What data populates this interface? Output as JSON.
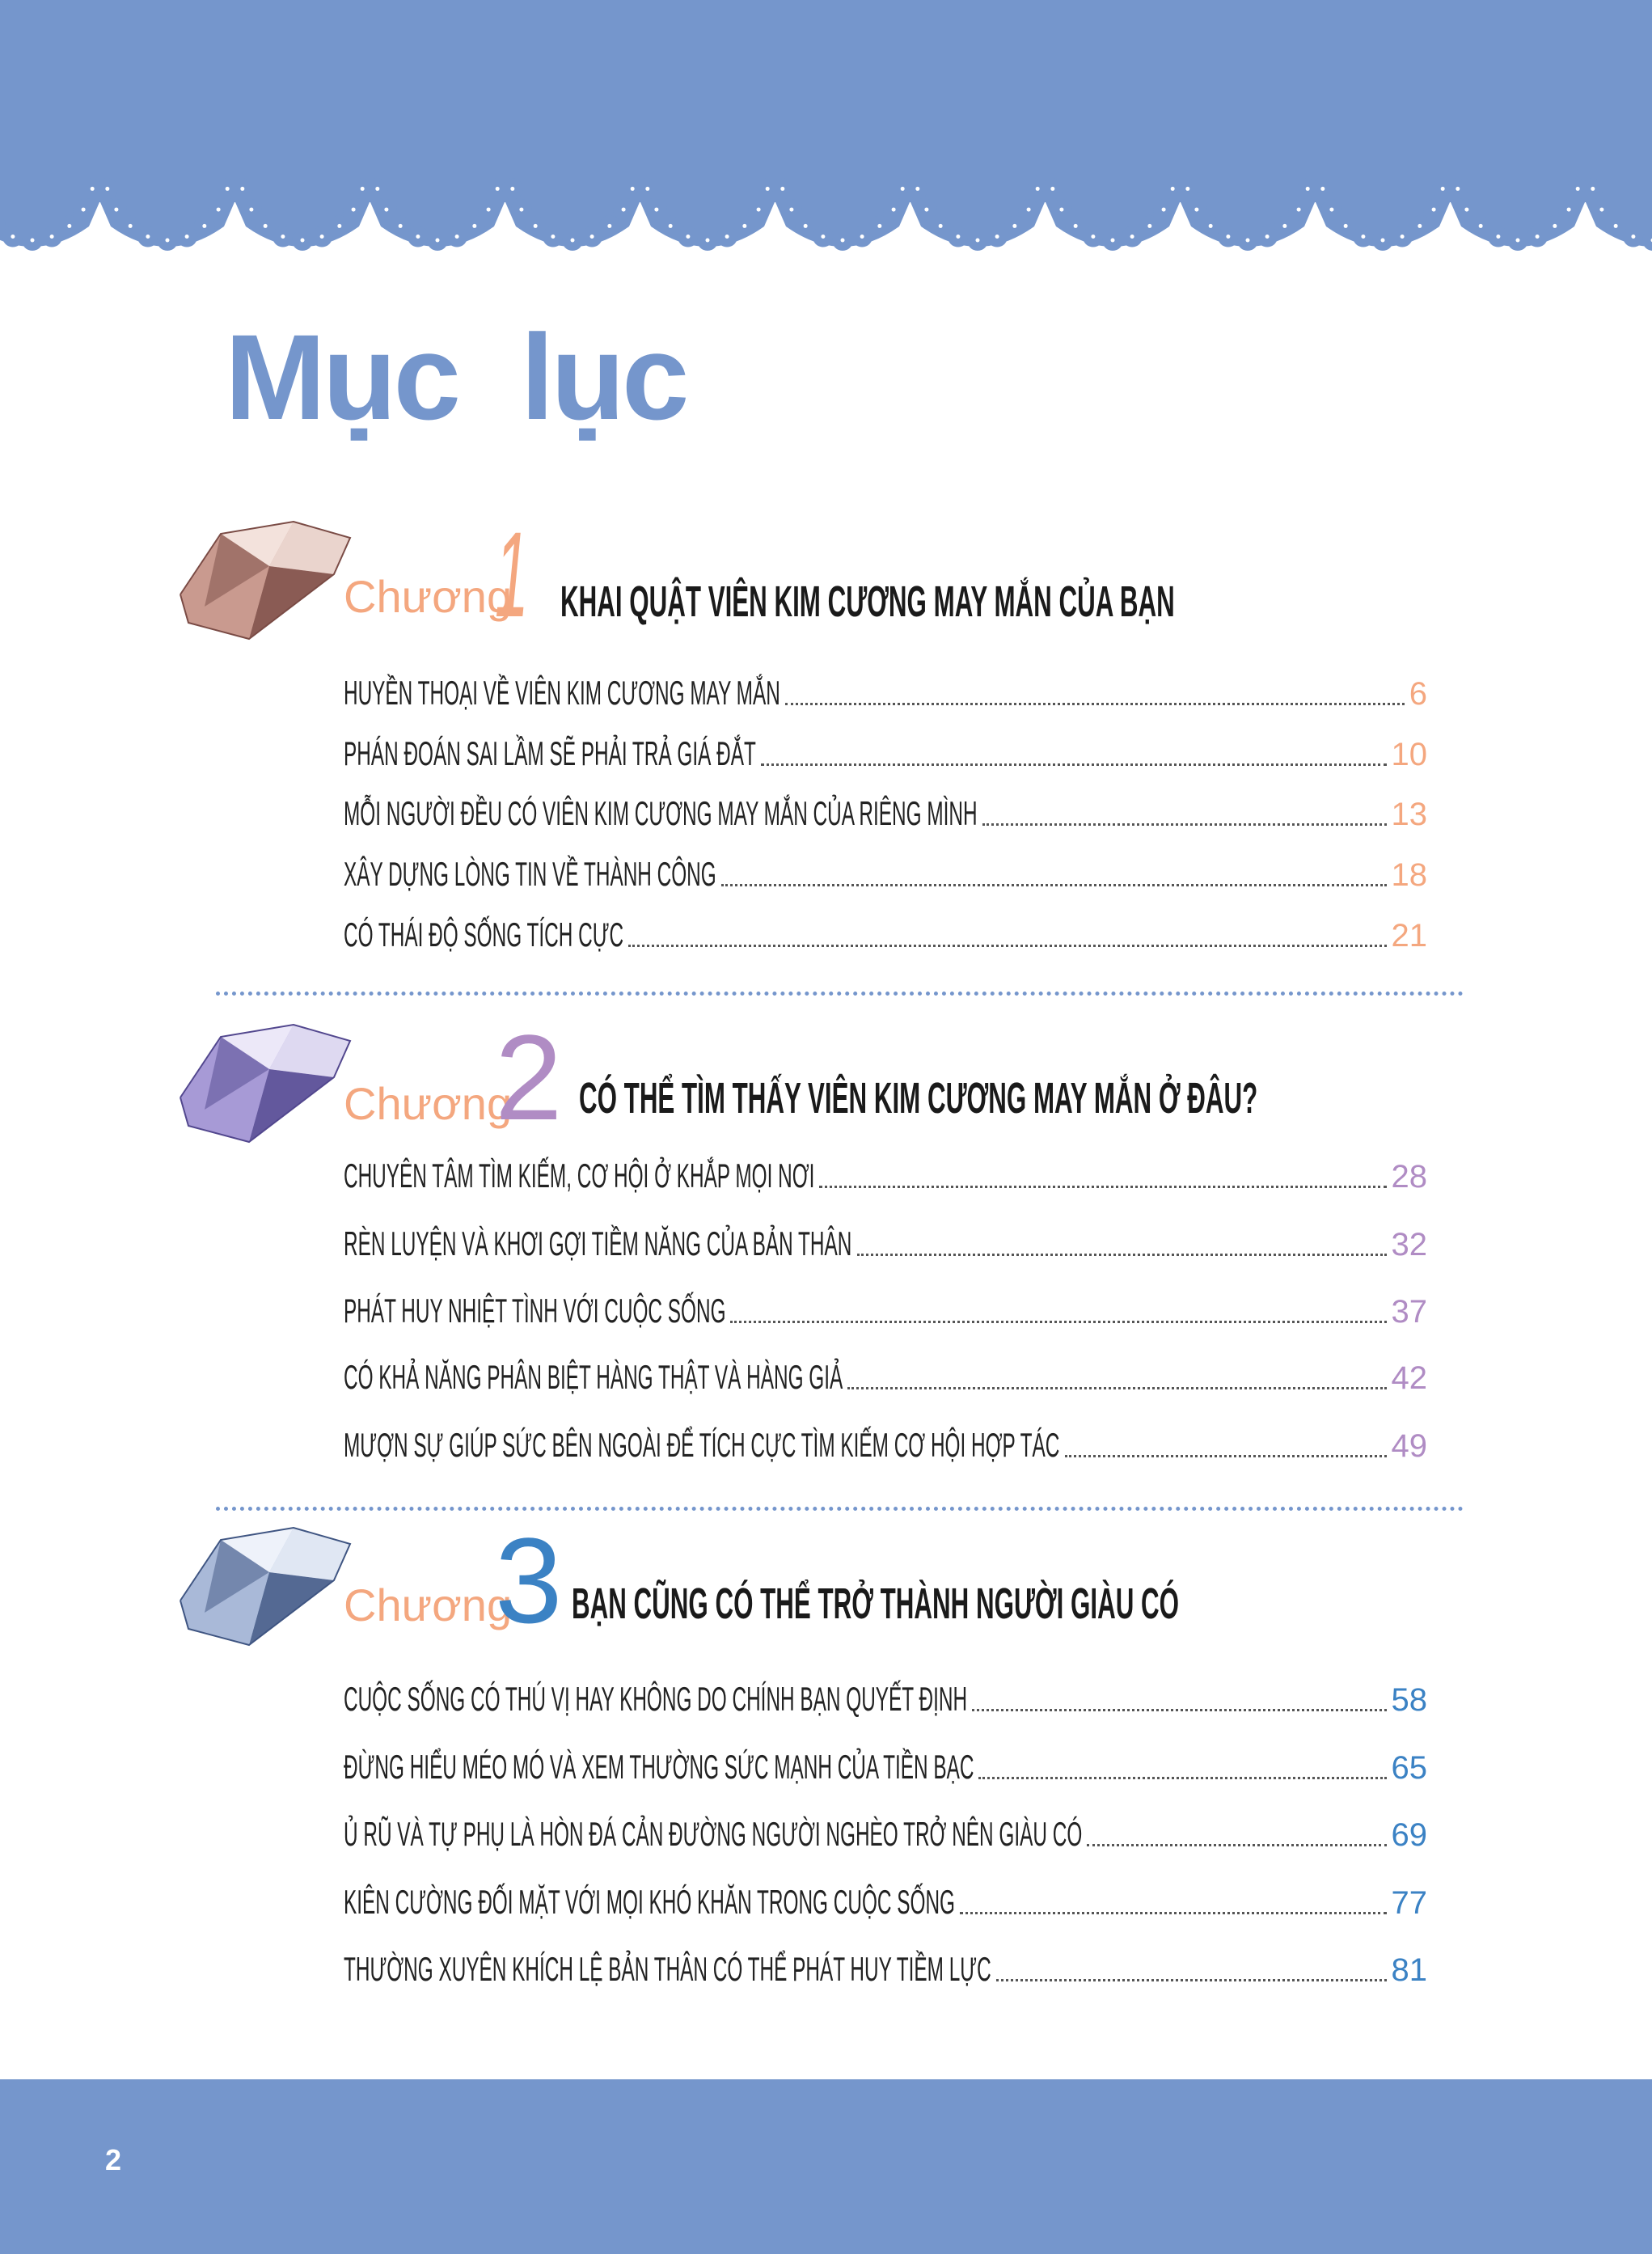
{
  "title": "Mục lục",
  "colors": {
    "band": "#7596cc",
    "chuong": "#f4a77f",
    "ch1": "#f4a77f",
    "ch2": "#b08cc4",
    "ch3": "#3b82c4"
  },
  "chapters": [
    {
      "word": "Chương",
      "number": "1",
      "title": "KHAI QUẬT VIÊN KIM CƯƠNG MAY MẮN CỦA BẠN",
      "gem": "pink-diamond",
      "items": [
        {
          "label": "HUYỀN THOẠI VỀ VIÊN KIM CƯƠNG MAY MẮN",
          "page": "6"
        },
        {
          "label": "PHÁN ĐOÁN SAI LẦM SẼ PHẢI TRẢ GIÁ ĐẮT",
          "page": "10"
        },
        {
          "label": "MỖI NGƯỜI ĐỀU CÓ VIÊN KIM CƯƠNG MAY MẮN CỦA RIÊNG MÌNH",
          "page": "13"
        },
        {
          "label": "XÂY DỰNG LÒNG TIN VỀ THÀNH CÔNG",
          "page": "18"
        },
        {
          "label": "CÓ THÁI ĐỘ SỐNG TÍCH CỰC",
          "page": "21"
        }
      ]
    },
    {
      "word": "Chương",
      "number": "2",
      "title": "CÓ THỂ TÌM THẤY VIÊN KIM CƯƠNG MAY MẮN Ở ĐÂU?",
      "gem": "purple-diamond",
      "items": [
        {
          "label": "CHUYÊN TÂM TÌM KIẾM, CƠ HỘI Ở KHẮP MỌI NƠI",
          "page": "28"
        },
        {
          "label": "RÈN LUYỆN VÀ KHƠI GỢI TIỀM NĂNG CỦA BẢN THÂN",
          "page": "32"
        },
        {
          "label": "PHÁT HUY NHIỆT TÌNH VỚI CUỘC SỐNG",
          "page": "37"
        },
        {
          "label": "CÓ KHẢ NĂNG PHÂN BIỆT HÀNG THẬT VÀ HÀNG GIẢ",
          "page": "42"
        },
        {
          "label": "MƯỢN SỰ GIÚP SỨC BÊN NGOÀI ĐỂ TÍCH CỰC TÌM KIẾM CƠ HỘI HỢP TÁC",
          "page": "49"
        }
      ]
    },
    {
      "word": "Chương",
      "number": "3",
      "title": "BẠN CŨNG CÓ THỂ TRỞ THÀNH NGƯỜI GIÀU CÓ",
      "gem": "blue-diamond",
      "items": [
        {
          "label": "CUỘC SỐNG CÓ THÚ VỊ HAY KHÔNG DO CHÍNH BẠN QUYẾT ĐỊNH",
          "page": "58"
        },
        {
          "label": "ĐỪNG HIỂU MÉO MÓ VÀ XEM THƯỜNG SỨC MẠNH CỦA TIỀN BẠC",
          "page": "65"
        },
        {
          "label": "Ủ RŨ VÀ TỰ PHỤ LÀ HÒN ĐÁ CẢN ĐƯỜNG NGƯỜI NGHÈO TRỞ NÊN GIÀU CÓ",
          "page": "69"
        },
        {
          "label": "KIÊN CƯỜNG ĐỐI MẶT VỚI MỌI KHÓ KHĂN TRONG CUỘC SỐNG",
          "page": "77"
        },
        {
          "label": "THƯỜNG XUYÊN KHÍCH LỆ BẢN THÂN CÓ THỂ PHÁT HUY TIỀM LỰC",
          "page": "81"
        }
      ]
    }
  ],
  "footer": {
    "page_number": "2"
  }
}
